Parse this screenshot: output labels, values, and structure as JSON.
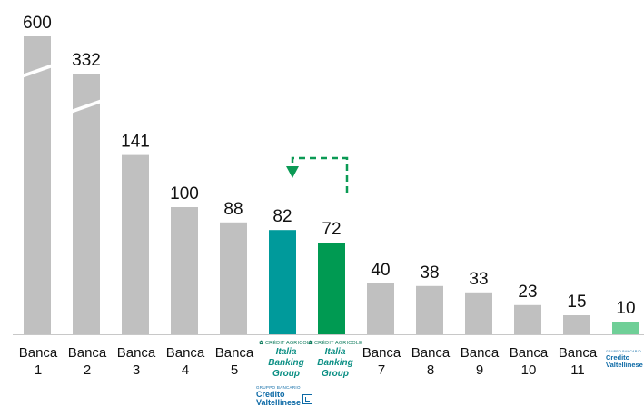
{
  "chart_data": {
    "type": "bar",
    "categories": [
      "Banca 1",
      "Banca 2",
      "Banca 3",
      "Banca 4",
      "Banca 5",
      "Crédit Agricole Italia Banking Group",
      "Crédit Agricole Italia Banking Group",
      "Banca 7",
      "Banca 8",
      "Banca 9",
      "Banca 10",
      "Banca 11",
      "Credito Valtellinese"
    ],
    "values": [
      600,
      332,
      141,
      100,
      88,
      82,
      72,
      40,
      38,
      33,
      23,
      15,
      10
    ],
    "value_labels": [
      "600",
      "332",
      "141",
      "100",
      "88",
      "82",
      "72",
      "40",
      "38",
      "33",
      "23",
      "15",
      "10"
    ],
    "axis_break_bars": [
      0,
      1
    ],
    "colors": {
      "default": "#c0c0c0",
      "highlight_1": "#009a9b",
      "highlight_2": "#009a52",
      "target": "#6fcf97",
      "arrow": "#0b9a55"
    },
    "annotation": "dashed arrow from the 72 bar to the 82 bar"
  },
  "labels": {
    "bank1": [
      "Banca",
      "1"
    ],
    "bank2": [
      "Banca",
      "2"
    ],
    "bank3": [
      "Banca",
      "3"
    ],
    "bank4": [
      "Banca",
      "4"
    ],
    "bank5": [
      "Banca",
      "5"
    ],
    "bank7": [
      "Banca",
      "7"
    ],
    "bank8": [
      "Banca",
      "8"
    ],
    "bank9": [
      "Banca",
      "9"
    ],
    "bank10": [
      "Banca",
      "10"
    ],
    "bank11": [
      "Banca",
      "11"
    ],
    "ca_logo_text": "CRÉDIT AGRICOLE",
    "ca_group_line1": "Italia",
    "ca_group_line2": "Banking",
    "ca_group_line3": "Group",
    "cv_small": "GRUPPO BANCARIO",
    "cv_line1": "Credito",
    "cv_line2": "Valtellinese"
  }
}
